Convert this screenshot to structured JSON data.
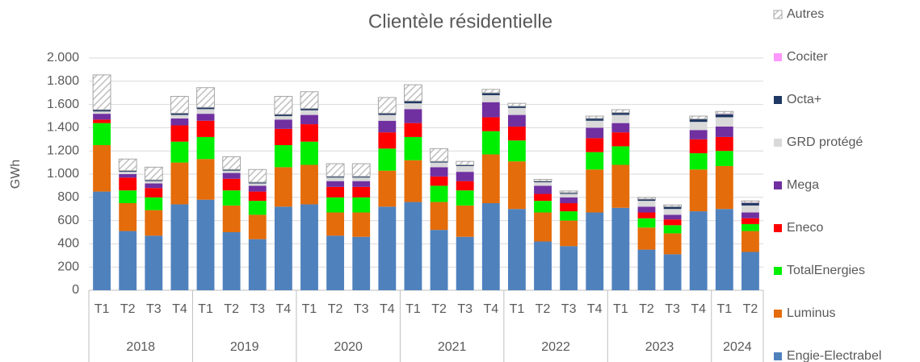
{
  "chart_data": {
    "type": "stacked_bar",
    "title": "Clientèle résidentielle",
    "y_label": "GWh",
    "categories": [
      "T1",
      "T2",
      "T3",
      "T4",
      "T1",
      "T2",
      "T3",
      "T4",
      "T1",
      "T2",
      "T3",
      "T4",
      "T1",
      "T2",
      "T3",
      "T4",
      "T1",
      "T2",
      "T3",
      "T4",
      "T1",
      "T2",
      "T3",
      "T4",
      "T1",
      "T2"
    ],
    "groups": [
      "2018",
      "2019",
      "2020",
      "2021",
      "2022",
      "2023",
      "2024"
    ],
    "group_sizes": [
      4,
      4,
      4,
      4,
      4,
      4,
      2
    ],
    "ylim": [
      0,
      2000
    ],
    "yticks": [
      0,
      200,
      400,
      600,
      800,
      {
        "value": 1000,
        "label": "1.000"
      },
      {
        "value": 1200,
        "label": "1.200"
      },
      {
        "value": 1400,
        "label": "1.400"
      },
      {
        "value": 1600,
        "label": "1.600"
      },
      {
        "value": 1800,
        "label": "1.800"
      },
      {
        "value": 2000,
        "label": "2.000"
      }
    ],
    "grid": true,
    "legend": "right",
    "series": [
      {
        "name": "Engie-Electrabel",
        "color": "#4f81bd",
        "values": [
          850,
          510,
          470,
          740,
          780,
          500,
          440,
          720,
          740,
          470,
          460,
          720,
          760,
          520,
          460,
          750,
          700,
          420,
          380,
          670,
          710,
          350,
          310,
          680,
          700,
          330
        ]
      },
      {
        "name": "Luminus",
        "color": "#e46c0a",
        "values": [
          400,
          240,
          220,
          360,
          350,
          230,
          210,
          340,
          340,
          200,
          210,
          310,
          360,
          240,
          270,
          420,
          410,
          250,
          220,
          370,
          370,
          190,
          180,
          360,
          370,
          180
        ]
      },
      {
        "name": "TotalEnergies",
        "color": "#00ee00",
        "values": [
          190,
          110,
          110,
          180,
          190,
          130,
          120,
          190,
          200,
          130,
          130,
          190,
          200,
          140,
          130,
          200,
          180,
          100,
          80,
          150,
          160,
          80,
          70,
          140,
          130,
          60
        ]
      },
      {
        "name": "Eneco",
        "color": "#ff0000",
        "values": [
          30,
          110,
          80,
          140,
          140,
          100,
          80,
          140,
          150,
          90,
          90,
          140,
          120,
          80,
          80,
          120,
          120,
          60,
          70,
          120,
          120,
          50,
          50,
          120,
          120,
          50
        ]
      },
      {
        "name": "Mega",
        "color": "#7030a0",
        "values": [
          50,
          30,
          40,
          60,
          60,
          50,
          50,
          80,
          80,
          50,
          50,
          100,
          120,
          80,
          80,
          130,
          100,
          70,
          50,
          90,
          80,
          50,
          40,
          80,
          90,
          50
        ]
      },
      {
        "name": "GRD protégé",
        "color": "#d9d9d9",
        "values": [
          20,
          20,
          20,
          30,
          40,
          20,
          20,
          30,
          40,
          30,
          30,
          50,
          50,
          40,
          50,
          60,
          60,
          30,
          30,
          60,
          70,
          50,
          50,
          70,
          80,
          60
        ]
      },
      {
        "name": "Octa+",
        "color": "#203864",
        "values": [
          15,
          10,
          10,
          15,
          15,
          10,
          10,
          15,
          15,
          10,
          10,
          15,
          20,
          10,
          10,
          20,
          15,
          10,
          10,
          20,
          20,
          15,
          20,
          25,
          25,
          20
        ]
      },
      {
        "name": "Cociter",
        "color": "#ff99ff",
        "values": [
          0,
          0,
          0,
          0,
          0,
          0,
          0,
          0,
          0,
          0,
          0,
          0,
          0,
          0,
          0,
          0,
          0,
          0,
          0,
          0,
          0,
          0,
          0,
          0,
          5,
          5
        ]
      },
      {
        "name": "Autres",
        "color": "#a6a6a6",
        "hatch": true,
        "values": [
          300,
          100,
          110,
          145,
          170,
          110,
          110,
          155,
          145,
          110,
          110,
          135,
          140,
          110,
          30,
          30,
          25,
          15,
          15,
          20,
          25,
          15,
          15,
          25,
          20,
          15
        ]
      }
    ]
  }
}
